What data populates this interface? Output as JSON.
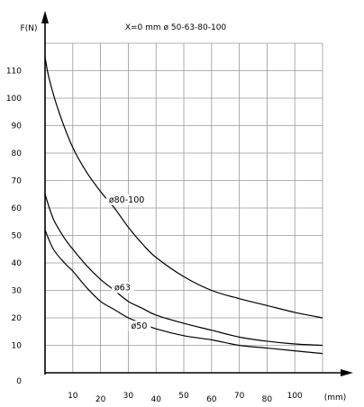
{
  "chart_data": {
    "type": "line",
    "title": "X=0 mm   ø 50-63-80-100",
    "ylabel": "F(N)",
    "xlabel": "(mm)",
    "y_ticks": [
      0,
      10,
      20,
      30,
      40,
      50,
      60,
      70,
      80,
      90,
      100,
      110
    ],
    "x_tick_labels": [
      "10",
      "20",
      "30",
      "40",
      "50",
      "60",
      "70",
      "80",
      "100"
    ],
    "x_tick_positions": [
      1,
      2,
      3,
      4,
      5,
      6,
      7,
      8,
      9
    ],
    "xlim": [
      0,
      10
    ],
    "ylim": [
      0,
      120
    ],
    "grid": true,
    "series": [
      {
        "name": "ø80-100",
        "x": [
          0,
          0.15,
          0.5,
          1,
          1.5,
          2,
          2.5,
          3,
          3.5,
          4,
          5,
          6,
          7,
          8,
          9,
          10
        ],
        "y": [
          115,
          107,
          95,
          82,
          73,
          66,
          60,
          53,
          47,
          42,
          35,
          30,
          27,
          24.5,
          22,
          20
        ],
        "label_at": [
          2.3,
          62
        ]
      },
      {
        "name": "ø63",
        "x": [
          0,
          0.3,
          0.7,
          1,
          1.5,
          2,
          2.5,
          3,
          3.5,
          4,
          5,
          6,
          7,
          8,
          9,
          10
        ],
        "y": [
          65,
          56,
          49,
          45,
          39,
          34,
          30,
          26,
          23.5,
          21,
          18,
          15.5,
          13,
          11.5,
          10.5,
          10
        ],
        "label_at": [
          2.5,
          30
        ]
      },
      {
        "name": "ø50",
        "x": [
          0,
          0.3,
          0.7,
          1,
          1.5,
          2,
          2.5,
          3,
          3.5,
          4,
          5,
          6,
          7,
          8,
          9,
          10
        ],
        "y": [
          52,
          45,
          40,
          37,
          31,
          26,
          23,
          20,
          18,
          16,
          13.5,
          12,
          10,
          9,
          8,
          7
        ],
        "label_at": [
          3.1,
          16
        ]
      }
    ]
  }
}
